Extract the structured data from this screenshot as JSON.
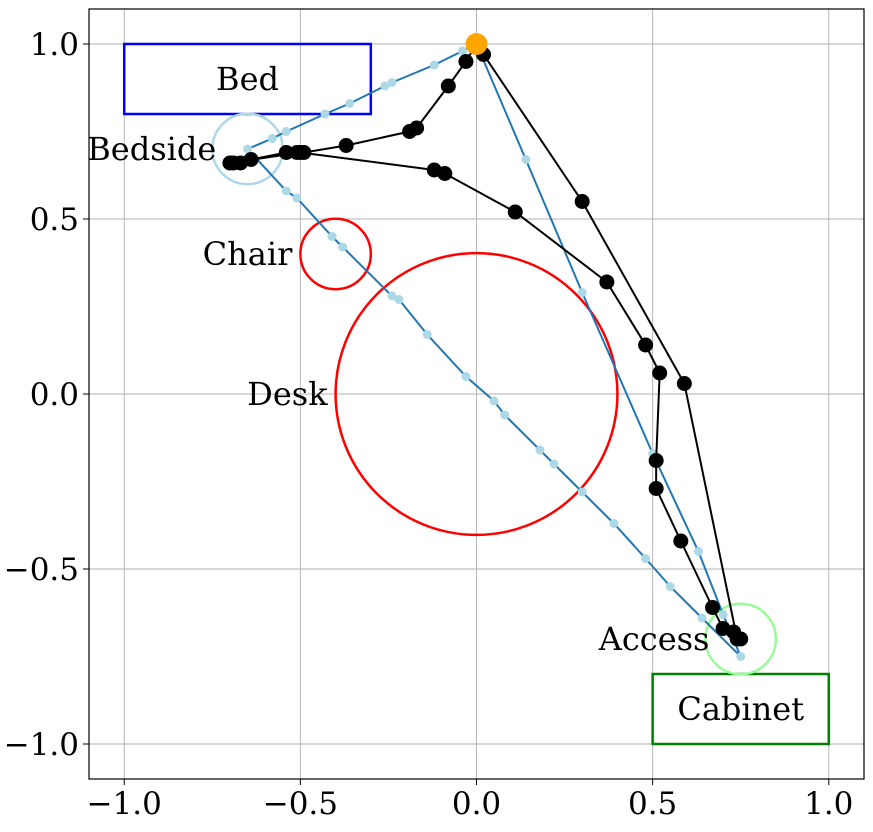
{
  "chart_data": {
    "type": "scatter",
    "xlim": [
      -1.1,
      1.1
    ],
    "ylim": [
      -1.1,
      1.1
    ],
    "grid": true,
    "x_ticks": [
      {
        "value": -1.0,
        "label": "−1.0"
      },
      {
        "value": -0.5,
        "label": "−0.5"
      },
      {
        "value": 0.0,
        "label": "0.0"
      },
      {
        "value": 0.5,
        "label": "0.5"
      },
      {
        "value": 1.0,
        "label": "1.0"
      }
    ],
    "y_ticks": [
      {
        "value": 1.0,
        "label": "1.0"
      },
      {
        "value": 0.5,
        "label": "0.5"
      },
      {
        "value": 0.0,
        "label": "0.0"
      },
      {
        "value": -0.5,
        "label": "−0.5"
      },
      {
        "value": -1.0,
        "label": "−1.0"
      }
    ],
    "obstacles": [
      {
        "kind": "rect",
        "label": "Bed",
        "x0": -1.0,
        "y0": 0.8,
        "x1": -0.3,
        "y1": 1.0,
        "color": "#0000ff"
      },
      {
        "kind": "rect",
        "label": "Cabinet",
        "x0": 0.5,
        "y0": -1.0,
        "x1": 1.0,
        "y1": -0.8,
        "color": "#008000"
      },
      {
        "kind": "circle",
        "label": "Chair",
        "cx": -0.4,
        "cy": 0.4,
        "r": 0.1,
        "color": "#ff0000"
      },
      {
        "kind": "circle",
        "label": "Desk",
        "cx": 0.0,
        "cy": 0.0,
        "r": 0.4,
        "color": "#ff0000"
      }
    ],
    "regions": [
      {
        "label": "Bedside",
        "cx": -0.65,
        "cy": 0.7,
        "r": 0.1,
        "color": "#add8e6"
      },
      {
        "label": "Access",
        "cx": 0.75,
        "cy": -0.7,
        "r": 0.1,
        "color": "#98fb98"
      }
    ],
    "start_point": {
      "x": 0.0,
      "y": 1.0,
      "color": "#ffa500"
    },
    "reference_path": {
      "color": "#1f77b4",
      "marker_color": "#add8e6",
      "x": [
        0.0,
        -0.04,
        -0.12,
        -0.24,
        -0.26,
        -0.36,
        -0.43,
        -0.54,
        -0.58,
        -0.65,
        -0.54,
        -0.51,
        -0.41,
        -0.38,
        -0.24,
        -0.22,
        -0.14,
        -0.03,
        0.05,
        0.08,
        0.18,
        0.22,
        0.3,
        0.39,
        0.48,
        0.55,
        0.64,
        0.75,
        0.7,
        0.63,
        0.5,
        0.3,
        0.14,
        0.0
      ],
      "y": [
        1.0,
        0.98,
        0.94,
        0.89,
        0.88,
        0.83,
        0.8,
        0.75,
        0.73,
        0.7,
        0.58,
        0.56,
        0.45,
        0.42,
        0.28,
        0.27,
        0.17,
        0.05,
        -0.02,
        -0.06,
        -0.16,
        -0.2,
        -0.28,
        -0.37,
        -0.47,
        -0.55,
        -0.64,
        -0.75,
        -0.63,
        -0.45,
        -0.17,
        0.29,
        0.67,
        1.0
      ]
    },
    "executed_path": {
      "color": "#000000",
      "x": [
        0.0,
        -0.03,
        -0.08,
        -0.17,
        -0.19,
        -0.37,
        -0.49,
        -0.51,
        -0.54,
        -0.64,
        -0.67,
        -0.69,
        -0.7,
        -0.5,
        -0.12,
        -0.09,
        0.11,
        0.37,
        0.48,
        0.52,
        0.51,
        0.51,
        0.58,
        0.67,
        0.7,
        0.73,
        0.75,
        0.74,
        0.59,
        0.3,
        0.02,
        0.0
      ],
      "y": [
        1.0,
        0.95,
        0.88,
        0.76,
        0.75,
        0.71,
        0.69,
        0.69,
        0.69,
        0.67,
        0.66,
        0.66,
        0.66,
        0.69,
        0.64,
        0.63,
        0.52,
        0.32,
        0.14,
        0.06,
        -0.19,
        -0.27,
        -0.42,
        -0.61,
        -0.67,
        -0.68,
        -0.7,
        -0.7,
        0.03,
        0.55,
        0.97,
        1.0
      ]
    }
  }
}
